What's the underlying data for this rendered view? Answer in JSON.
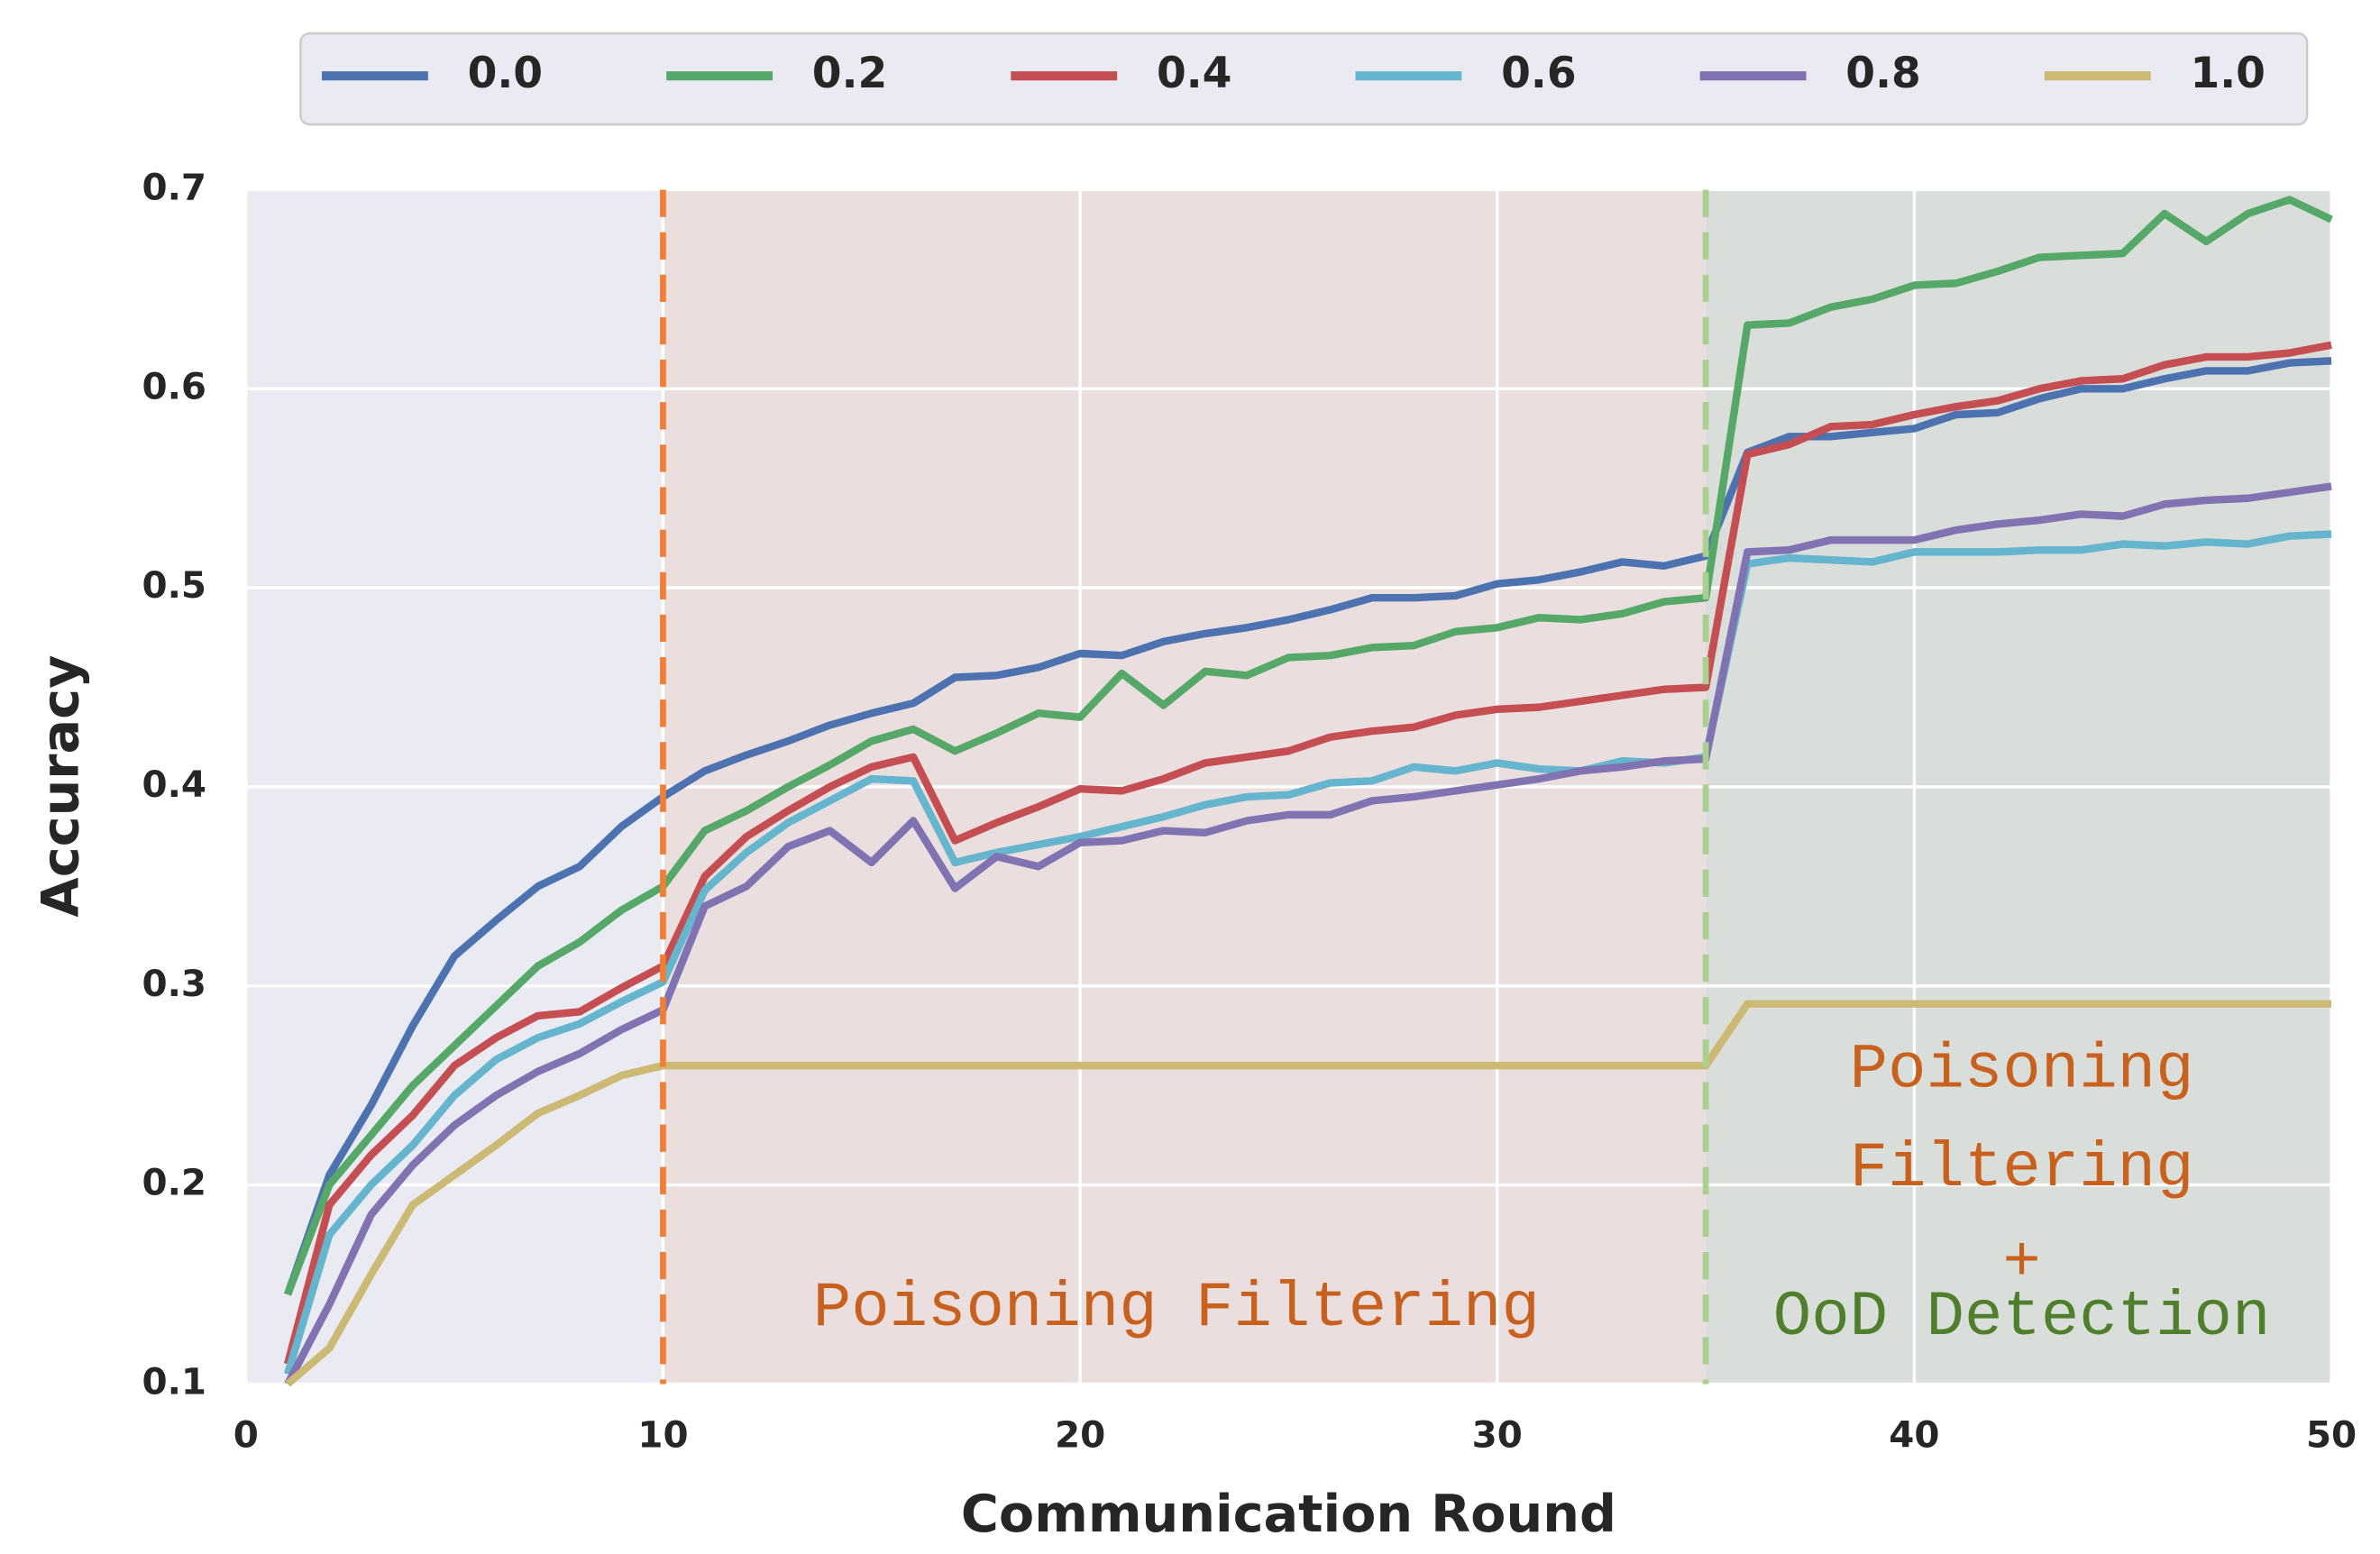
{
  "chart_data": {
    "type": "line",
    "xlabel": "Communication Round",
    "ylabel": "Accuracy",
    "xlim": [
      0,
      50
    ],
    "ylim": [
      0.1,
      0.7
    ],
    "xticks": [
      0,
      10,
      20,
      30,
      40,
      50
    ],
    "yticks": [
      0.1,
      0.2,
      0.3,
      0.4,
      0.5,
      0.6,
      0.7
    ],
    "grid": true,
    "legend": "top",
    "x": [
      1,
      2,
      3,
      4,
      5,
      6,
      7,
      8,
      9,
      10,
      11,
      12,
      13,
      14,
      15,
      16,
      17,
      18,
      19,
      20,
      21,
      22,
      23,
      24,
      25,
      26,
      27,
      28,
      29,
      30,
      31,
      32,
      33,
      34,
      35,
      36,
      37,
      38,
      39,
      40,
      41,
      42,
      43,
      44,
      45,
      46,
      47,
      48,
      49,
      50
    ],
    "series": [
      {
        "name": "0.0",
        "color": "#4c72b0",
        "values": [
          0.145,
          0.205,
          0.24,
          0.28,
          0.315,
          0.333,
          0.35,
          0.36,
          0.38,
          0.395,
          0.408,
          0.416,
          0.423,
          0.431,
          0.437,
          0.442,
          0.455,
          0.456,
          0.46,
          0.467,
          0.466,
          0.473,
          0.477,
          0.48,
          0.484,
          0.489,
          0.495,
          0.495,
          0.496,
          0.502,
          0.504,
          0.508,
          0.513,
          0.511,
          0.516,
          0.568,
          0.576,
          0.576,
          0.578,
          0.58,
          0.587,
          0.588,
          0.595,
          0.6,
          0.6,
          0.605,
          0.609,
          0.609,
          0.613,
          0.614
        ]
      },
      {
        "name": "0.2",
        "color": "#55a868",
        "values": [
          0.145,
          0.2,
          0.225,
          0.25,
          0.27,
          0.29,
          0.31,
          0.322,
          0.338,
          0.35,
          0.378,
          0.388,
          0.4,
          0.411,
          0.423,
          0.429,
          0.418,
          0.427,
          0.437,
          0.435,
          0.457,
          0.441,
          0.458,
          0.456,
          0.465,
          0.466,
          0.47,
          0.471,
          0.478,
          0.48,
          0.485,
          0.484,
          0.487,
          0.493,
          0.495,
          0.632,
          0.633,
          0.641,
          0.645,
          0.652,
          0.653,
          0.659,
          0.666,
          0.667,
          0.668,
          0.688,
          0.674,
          0.688,
          0.695,
          0.685
        ]
      },
      {
        "name": "0.4",
        "color": "#c44e52",
        "values": [
          0.11,
          0.19,
          0.215,
          0.235,
          0.26,
          0.274,
          0.285,
          0.287,
          0.299,
          0.31,
          0.355,
          0.375,
          0.388,
          0.4,
          0.41,
          0.415,
          0.373,
          0.382,
          0.39,
          0.399,
          0.398,
          0.404,
          0.412,
          0.415,
          0.418,
          0.425,
          0.428,
          0.43,
          0.436,
          0.439,
          0.44,
          0.443,
          0.446,
          0.449,
          0.45,
          0.567,
          0.572,
          0.581,
          0.582,
          0.587,
          0.591,
          0.594,
          0.6,
          0.604,
          0.605,
          0.612,
          0.616,
          0.616,
          0.618,
          0.622
        ]
      },
      {
        "name": "0.6",
        "color": "#64b5cd",
        "values": [
          0.105,
          0.175,
          0.2,
          0.22,
          0.245,
          0.263,
          0.274,
          0.281,
          0.292,
          0.302,
          0.348,
          0.367,
          0.382,
          0.393,
          0.404,
          0.403,
          0.362,
          0.367,
          0.371,
          0.375,
          0.38,
          0.385,
          0.391,
          0.395,
          0.396,
          0.402,
          0.403,
          0.41,
          0.408,
          0.412,
          0.409,
          0.408,
          0.413,
          0.412,
          0.415,
          0.512,
          0.515,
          0.514,
          0.513,
          0.518,
          0.518,
          0.518,
          0.519,
          0.519,
          0.522,
          0.521,
          0.523,
          0.522,
          0.526,
          0.527
        ]
      },
      {
        "name": "0.8",
        "color": "#8172b2",
        "values": [
          0.1,
          0.14,
          0.185,
          0.21,
          0.23,
          0.245,
          0.257,
          0.266,
          0.278,
          0.288,
          0.34,
          0.35,
          0.37,
          0.378,
          0.362,
          0.383,
          0.349,
          0.365,
          0.36,
          0.372,
          0.373,
          0.378,
          0.377,
          0.383,
          0.386,
          0.386,
          0.393,
          0.395,
          0.398,
          0.401,
          0.404,
          0.408,
          0.41,
          0.413,
          0.414,
          0.518,
          0.519,
          0.524,
          0.524,
          0.524,
          0.529,
          0.532,
          0.534,
          0.537,
          0.536,
          0.542,
          0.544,
          0.545,
          0.548,
          0.551
        ]
      },
      {
        "name": "1.0",
        "color": "#ccb974",
        "values": [
          0.1,
          0.118,
          0.155,
          0.19,
          0.205,
          0.22,
          0.236,
          0.245,
          0.255,
          0.26,
          0.26,
          0.26,
          0.26,
          0.26,
          0.26,
          0.26,
          0.26,
          0.26,
          0.26,
          0.26,
          0.26,
          0.26,
          0.26,
          0.26,
          0.26,
          0.26,
          0.26,
          0.26,
          0.26,
          0.26,
          0.26,
          0.26,
          0.26,
          0.26,
          0.26,
          0.291,
          0.291,
          0.291,
          0.291,
          0.291,
          0.291,
          0.291,
          0.291,
          0.291,
          0.291,
          0.291,
          0.291,
          0.291,
          0.291,
          0.291
        ]
      }
    ],
    "regions": [
      {
        "xlim": [
          0,
          10
        ],
        "color": "#eaeaf2"
      },
      {
        "xlim": [
          10,
          35
        ],
        "color": "#eadede"
      },
      {
        "xlim": [
          35,
          50
        ],
        "color": "#dadedb"
      }
    ],
    "vlines": [
      {
        "x": 10,
        "color": "#f07f33"
      },
      {
        "x": 35,
        "color": "#a9d08e"
      }
    ],
    "annotations": [
      {
        "lines": [
          {
            "text": "Poisoning Filtering",
            "color": "#c8601e"
          }
        ]
      },
      {
        "lines": [
          {
            "text": "Poisoning",
            "color": "#c8601e"
          },
          {
            "text": "Filtering",
            "color": "#c8601e"
          },
          {
            "text": "+",
            "color": "#c8601e"
          },
          {
            "text": "OoD Detection",
            "color": "#4f7f2c"
          }
        ]
      }
    ]
  }
}
